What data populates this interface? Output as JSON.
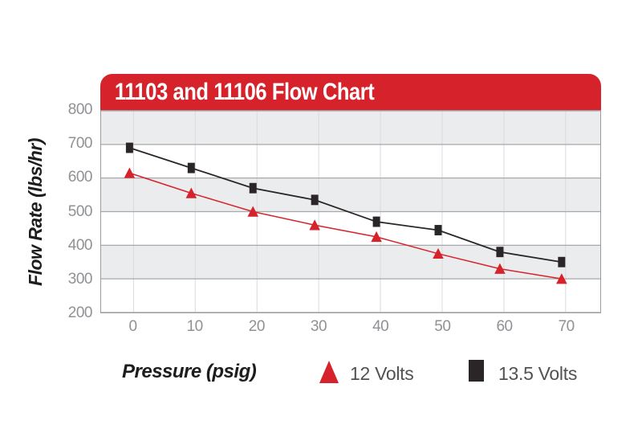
{
  "banner": {
    "title": "11103 and 11106 Flow Chart"
  },
  "axes": {
    "y_title": "Flow Rate (lbs/hr)",
    "x_title": "Pressure (psig)"
  },
  "legend": [
    {
      "label": "12 Volts",
      "marker": "triangle",
      "color": "#d6232b"
    },
    {
      "label": "13.5 Volts",
      "marker": "square",
      "color": "#2a2627"
    }
  ],
  "colors": {
    "banner_red": "#d6232b",
    "banner_text": "#ffffff",
    "band_grey": "#ebeced",
    "h_gridline": "#a6a8ab",
    "v_gridline": "#d9dadc",
    "plot_border": "#9a9c9f",
    "tick_text": "#8f9194",
    "legend_text": "#515254"
  },
  "chart_data": {
    "type": "line",
    "title": "11103 and 11106 Flow Chart",
    "xlabel": "Pressure (psig)",
    "ylabel": "Flow Rate (lbs/hr)",
    "x": [
      0,
      10,
      20,
      30,
      40,
      50,
      60,
      70
    ],
    "xticks": [
      0,
      10,
      20,
      30,
      40,
      50,
      60,
      70
    ],
    "yticks": [
      800,
      700,
      600,
      500,
      400,
      300,
      200
    ],
    "ylim": [
      200,
      800
    ],
    "xlim": [
      -5,
      76
    ],
    "grid": {
      "horizontal": true,
      "vertical": true,
      "alternating_grey_bands": true
    },
    "legend_position": "bottom",
    "band_color": "#ebeced",
    "hgrid_color": "#a6a8ab",
    "vgrid_color": "#d9dadc",
    "series": [
      {
        "name": "12 Volts",
        "marker": "triangle",
        "color": "#d6232b",
        "values": [
          615,
          555,
          500,
          460,
          425,
          375,
          330,
          300
        ]
      },
      {
        "name": "13.5 Volts",
        "marker": "square",
        "color": "#2a2627",
        "values": [
          690,
          630,
          570,
          535,
          470,
          445,
          380,
          350
        ]
      }
    ]
  }
}
